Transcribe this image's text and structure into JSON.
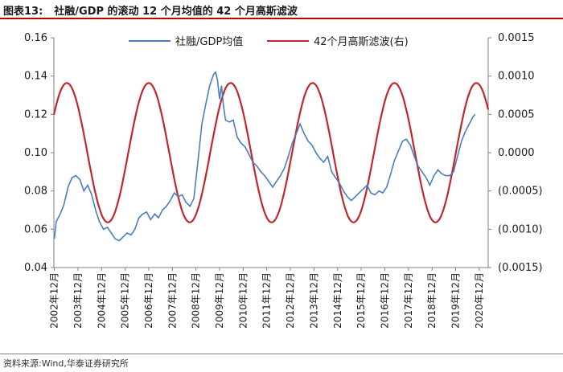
{
  "header": {
    "figure_no": "图表13:",
    "title": "社融/GDP 的滚动 12 个月均值的 42 个月高斯滤波"
  },
  "footer": {
    "source": "资料来源:Wind,华泰证券研究所"
  },
  "colors": {
    "series_blue": "#4a7ebb",
    "series_red": "#c0282e",
    "title_rule": "#c00000",
    "axis": "#808080"
  },
  "chart_data": {
    "type": "line",
    "legend_position": "top",
    "grid": false,
    "x_ticks": [
      "2002年12月",
      "2003年12月",
      "2004年12月",
      "2005年12月",
      "2006年12月",
      "2007年12月",
      "2008年12月",
      "2009年12月",
      "2010年12月",
      "2011年12月",
      "2012年12月",
      "2013年12月",
      "2014年12月",
      "2015年12月",
      "2016年12月",
      "2017年12月",
      "2018年12月",
      "2019年12月",
      "2020年12月"
    ],
    "xlim": [
      2002.9,
      2021.3
    ],
    "y_left": {
      "ylim": [
        0.04,
        0.16
      ],
      "ticks": [
        "0.04",
        "0.06",
        "0.08",
        "0.10",
        "0.12",
        "0.14",
        "0.16"
      ]
    },
    "y_right": {
      "ylim": [
        -0.0015,
        0.0015
      ],
      "ticks": [
        "(0.0015)",
        "(0.0010)",
        "(0.0005)",
        "0.0000",
        "0.0005",
        "0.0010",
        "0.0015"
      ]
    },
    "series": [
      {
        "name": "社融/GDP均值",
        "axis": "left",
        "points": [
          [
            2002.92,
            0.055
          ],
          [
            2003.0,
            0.064
          ],
          [
            2003.17,
            0.068
          ],
          [
            2003.33,
            0.073
          ],
          [
            2003.5,
            0.082
          ],
          [
            2003.67,
            0.087
          ],
          [
            2003.83,
            0.088
          ],
          [
            2004.0,
            0.086
          ],
          [
            2004.17,
            0.08
          ],
          [
            2004.33,
            0.083
          ],
          [
            2004.5,
            0.078
          ],
          [
            2004.67,
            0.07
          ],
          [
            2004.83,
            0.064
          ],
          [
            2005.0,
            0.06
          ],
          [
            2005.17,
            0.061
          ],
          [
            2005.33,
            0.058
          ],
          [
            2005.5,
            0.055
          ],
          [
            2005.67,
            0.054
          ],
          [
            2005.83,
            0.056
          ],
          [
            2006.0,
            0.058
          ],
          [
            2006.17,
            0.057
          ],
          [
            2006.33,
            0.06
          ],
          [
            2006.5,
            0.066
          ],
          [
            2006.67,
            0.068
          ],
          [
            2006.83,
            0.069
          ],
          [
            2007.0,
            0.065
          ],
          [
            2007.17,
            0.068
          ],
          [
            2007.33,
            0.066
          ],
          [
            2007.5,
            0.07
          ],
          [
            2007.67,
            0.072
          ],
          [
            2007.83,
            0.075
          ],
          [
            2008.0,
            0.079
          ],
          [
            2008.17,
            0.077
          ],
          [
            2008.33,
            0.078
          ],
          [
            2008.5,
            0.074
          ],
          [
            2008.67,
            0.072
          ],
          [
            2008.83,
            0.076
          ],
          [
            2009.0,
            0.095
          ],
          [
            2009.17,
            0.115
          ],
          [
            2009.33,
            0.125
          ],
          [
            2009.5,
            0.135
          ],
          [
            2009.67,
            0.141
          ],
          [
            2009.75,
            0.142
          ],
          [
            2009.83,
            0.138
          ],
          [
            2009.92,
            0.128
          ],
          [
            2010.0,
            0.135
          ],
          [
            2010.08,
            0.125
          ],
          [
            2010.17,
            0.117
          ],
          [
            2010.33,
            0.116
          ],
          [
            2010.5,
            0.117
          ],
          [
            2010.67,
            0.108
          ],
          [
            2010.83,
            0.105
          ],
          [
            2011.0,
            0.103
          ],
          [
            2011.17,
            0.099
          ],
          [
            2011.33,
            0.095
          ],
          [
            2011.5,
            0.093
          ],
          [
            2011.67,
            0.09
          ],
          [
            2011.83,
            0.088
          ],
          [
            2012.0,
            0.085
          ],
          [
            2012.17,
            0.082
          ],
          [
            2012.33,
            0.085
          ],
          [
            2012.5,
            0.088
          ],
          [
            2012.67,
            0.092
          ],
          [
            2012.83,
            0.098
          ],
          [
            2013.0,
            0.105
          ],
          [
            2013.17,
            0.11
          ],
          [
            2013.33,
            0.115
          ],
          [
            2013.5,
            0.11
          ],
          [
            2013.67,
            0.106
          ],
          [
            2013.83,
            0.104
          ],
          [
            2014.0,
            0.1
          ],
          [
            2014.17,
            0.097
          ],
          [
            2014.33,
            0.095
          ],
          [
            2014.5,
            0.098
          ],
          [
            2014.67,
            0.09
          ],
          [
            2014.83,
            0.087
          ],
          [
            2015.0,
            0.084
          ],
          [
            2015.17,
            0.08
          ],
          [
            2015.33,
            0.077
          ],
          [
            2015.5,
            0.075
          ],
          [
            2015.67,
            0.077
          ],
          [
            2015.83,
            0.079
          ],
          [
            2016.0,
            0.081
          ],
          [
            2016.17,
            0.083
          ],
          [
            2016.33,
            0.079
          ],
          [
            2016.5,
            0.078
          ],
          [
            2016.67,
            0.08
          ],
          [
            2016.83,
            0.079
          ],
          [
            2017.0,
            0.082
          ],
          [
            2017.17,
            0.089
          ],
          [
            2017.33,
            0.096
          ],
          [
            2017.5,
            0.101
          ],
          [
            2017.67,
            0.106
          ],
          [
            2017.83,
            0.107
          ],
          [
            2018.0,
            0.104
          ],
          [
            2018.17,
            0.098
          ],
          [
            2018.33,
            0.093
          ],
          [
            2018.5,
            0.09
          ],
          [
            2018.67,
            0.087
          ],
          [
            2018.83,
            0.083
          ],
          [
            2019.0,
            0.088
          ],
          [
            2019.17,
            0.091
          ],
          [
            2019.33,
            0.089
          ],
          [
            2019.5,
            0.088
          ],
          [
            2019.67,
            0.088
          ],
          [
            2019.83,
            0.09
          ],
          [
            2020.0,
            0.098
          ],
          [
            2020.17,
            0.106
          ],
          [
            2020.33,
            0.111
          ],
          [
            2020.5,
            0.115
          ],
          [
            2020.67,
            0.119
          ],
          [
            2020.75,
            0.12
          ]
        ]
      },
      {
        "name": "42个月高斯滤波(右)",
        "axis": "right",
        "sine": {
          "amplitude": 0.00091,
          "period_years": 3.47,
          "peak_at": 2003.45,
          "x_start": 2002.9,
          "x_end": 2021.3
        }
      }
    ]
  }
}
